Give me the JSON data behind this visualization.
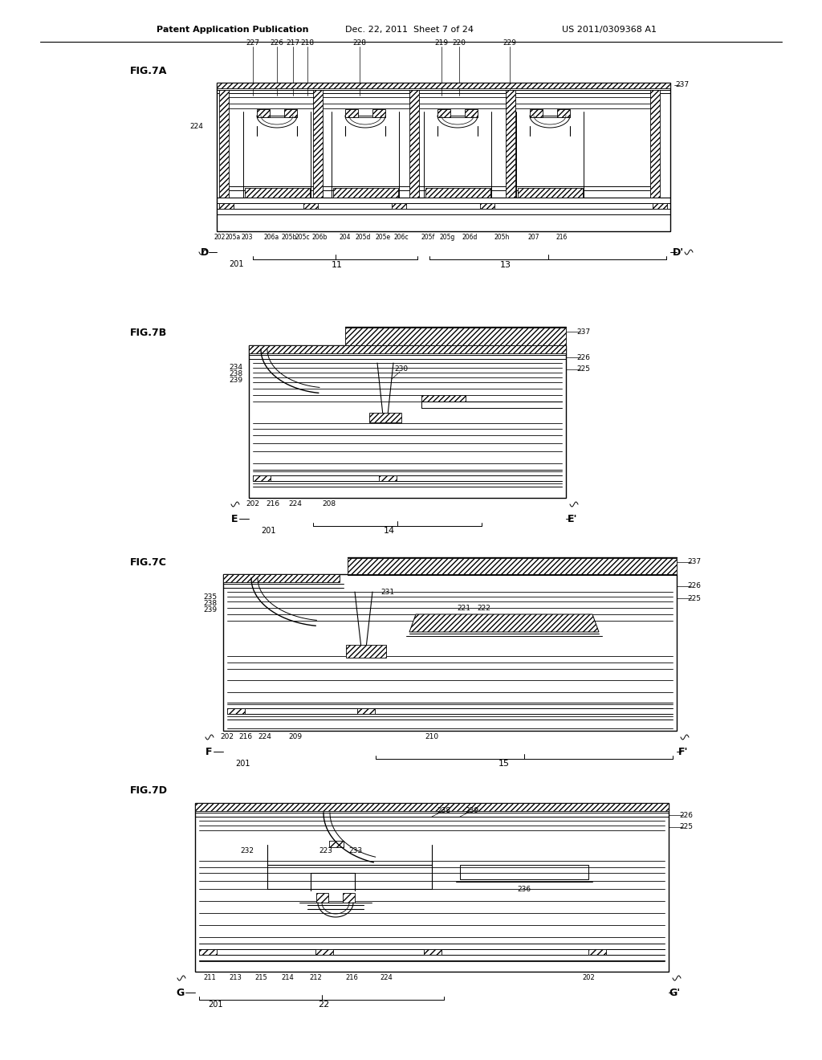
{
  "header_left": "Patent Application Publication",
  "header_mid": "Dec. 22, 2011  Sheet 7 of 24",
  "header_right": "US 2011/0309368 A1",
  "bg": "#ffffff"
}
